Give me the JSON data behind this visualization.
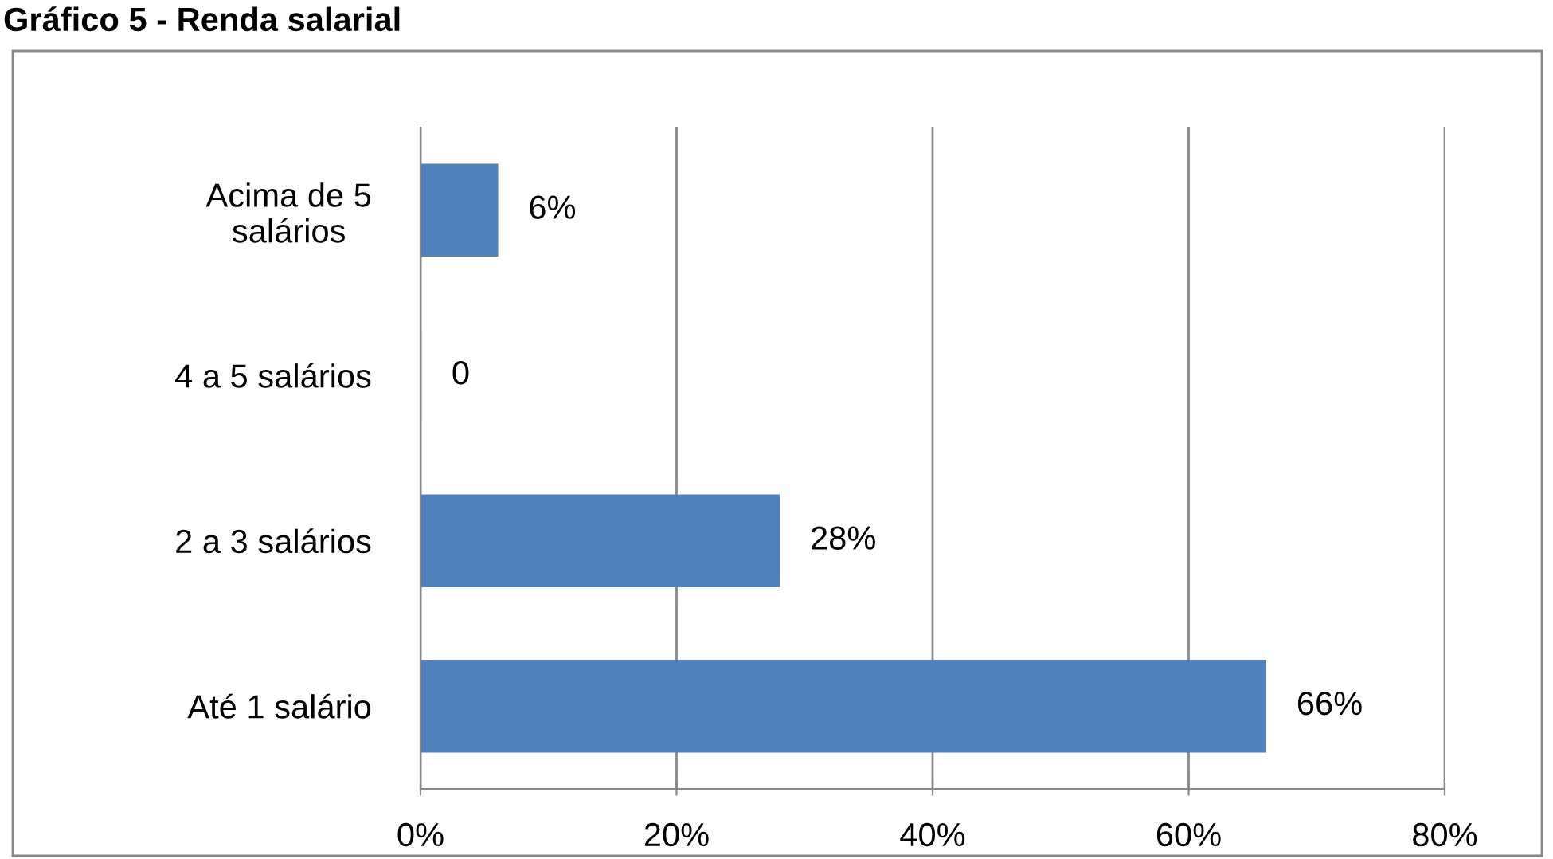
{
  "chart_data": {
    "type": "bar",
    "orientation": "horizontal",
    "title": "Gráfico 5 - Renda salarial",
    "categories": [
      "Acima de 5\nsalários",
      "4 a 5 salários",
      "2 a 3 salários",
      "Até 1 salário"
    ],
    "values": [
      6,
      0,
      28,
      66
    ],
    "value_labels": [
      "6%",
      "0",
      "28%",
      "66%"
    ],
    "color": "#4f81bd",
    "xlim": [
      0,
      80
    ],
    "xticks": [
      {
        "value": 0,
        "label": "0%"
      },
      {
        "value": 20,
        "label": "20%"
      },
      {
        "value": 40,
        "label": "40%"
      },
      {
        "value": 60,
        "label": "60%"
      },
      {
        "value": 80,
        "label": "80%"
      }
    ],
    "grid": "x",
    "legend": false
  }
}
